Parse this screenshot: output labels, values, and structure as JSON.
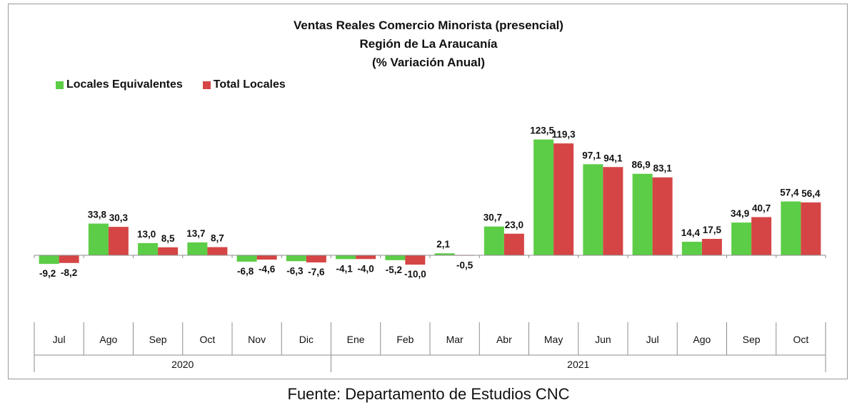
{
  "colors": {
    "locales_equivalentes": "#5ccd46",
    "total_locales": "#d64545"
  },
  "source": "Fuente: Departamento de Estudios CNC",
  "chart_data": {
    "type": "bar",
    "title": "Ventas Reales Comercio Minorista (presencial)",
    "subtitle": "Región de La Araucanía",
    "subtitle2": "(% Variación Anual)",
    "legend_position": "top-left",
    "grid": false,
    "categories": [
      "Jul",
      "Ago",
      "Sep",
      "Oct",
      "Nov",
      "Dic",
      "Ene",
      "Feb",
      "Mar",
      "Abr",
      "May",
      "Jun",
      "Jul",
      "Ago",
      "Sep",
      "Oct"
    ],
    "groups": [
      {
        "label": "2020",
        "start": 0,
        "end": 5
      },
      {
        "label": "2021",
        "start": 6,
        "end": 15
      }
    ],
    "series": [
      {
        "name": "Locales Equivalentes",
        "values": [
          -9.2,
          33.8,
          13.0,
          13.7,
          -6.8,
          -6.3,
          -4.1,
          -5.2,
          2.1,
          30.7,
          123.5,
          97.1,
          86.9,
          14.4,
          34.9,
          57.4
        ],
        "labels": [
          "-9,2",
          "33,8",
          "13,0",
          "13,7",
          "-6,8",
          "-6,3",
          "-4,1",
          "-5,2",
          "2,1",
          "30,7",
          "123,5",
          "97,1",
          "86,9",
          "14,4",
          "34,9",
          "57,4"
        ]
      },
      {
        "name": "Total Locales",
        "values": [
          -8.2,
          30.3,
          8.5,
          8.7,
          -4.6,
          -7.6,
          -4.0,
          -10.0,
          -0.5,
          23.0,
          119.3,
          94.1,
          83.1,
          17.5,
          40.7,
          56.4
        ],
        "labels": [
          "-8,2",
          "30,3",
          "8,5",
          "8,7",
          "-4,6",
          "-7,6",
          "-4,0",
          "-10,0",
          "-0,5",
          "23,0",
          "119,3",
          "94,1",
          "83,1",
          "17,5",
          "40,7",
          "56,4"
        ]
      }
    ]
  }
}
